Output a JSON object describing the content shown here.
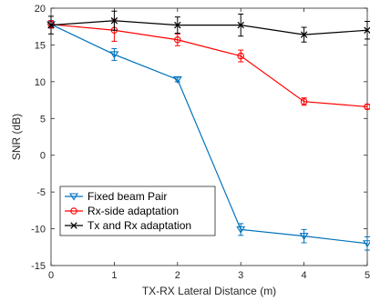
{
  "chart_data": {
    "type": "line",
    "xlabel": "TX-RX Lateral Distance (m)",
    "ylabel": "SNR (dB)",
    "xlim": [
      0,
      5
    ],
    "ylim": [
      -15,
      20
    ],
    "xticks": [
      "0",
      "1",
      "2",
      "3",
      "4",
      "5"
    ],
    "yticks": [
      "-15",
      "-10",
      "-5",
      "0",
      "5",
      "10",
      "15",
      "20"
    ],
    "grid": false,
    "legend_position": "bottom-left",
    "x": [
      0,
      1,
      2,
      3,
      4,
      5
    ],
    "series": [
      {
        "name": "Fixed beam Pair",
        "color": "#0072BD",
        "marker": "triangle-down",
        "values": [
          17.8,
          13.7,
          10.3,
          -10.1,
          -11.0,
          -12.0
        ],
        "errors": [
          0.5,
          0.8,
          0.3,
          0.8,
          0.9,
          0.9
        ]
      },
      {
        "name": "Rx-side adaptation",
        "color": "#FF0000",
        "marker": "circle",
        "values": [
          17.8,
          17.0,
          15.7,
          13.5,
          7.3,
          6.6
        ],
        "errors": [
          0.5,
          1.5,
          0.8,
          0.8,
          0.5,
          0.3
        ]
      },
      {
        "name": "Tx and Rx adaptation",
        "color": "#000000",
        "marker": "x",
        "values": [
          17.7,
          18.3,
          17.7,
          17.7,
          16.4,
          17.0
        ],
        "errors": [
          1.2,
          1.3,
          1.1,
          1.5,
          1.0,
          1.2
        ]
      }
    ]
  }
}
